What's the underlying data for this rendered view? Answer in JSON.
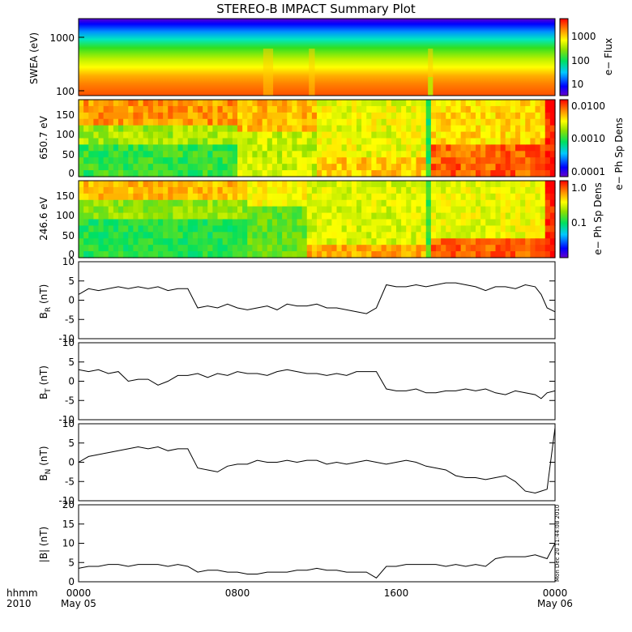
{
  "title": "STEREO-B IMPACT Summary Plot",
  "stamp": "Mon Dec 20 11:44:08 2010",
  "time_axis": {
    "row1_labels": [
      "hhmm",
      "0000",
      "0800",
      "1600",
      "0000"
    ],
    "row2_labels": [
      "2010",
      "May 05",
      "",
      "",
      "May 06"
    ]
  },
  "panels": {
    "swea": {
      "ylabel": "SWEA (eV)",
      "yticks": [
        "1000",
        "100"
      ],
      "cbar_label": "e− Flux",
      "cbar_ticks": [
        "1000",
        "100",
        "10"
      ]
    },
    "pad650": {
      "ylabel": "650.7 eV",
      "yticks": [
        "150",
        "100",
        "50",
        "0"
      ],
      "cbar_label": "e− Ph Sp Dens",
      "cbar_ticks": [
        "0.0100",
        "0.0010",
        "0.0001"
      ]
    },
    "pad246": {
      "ylabel": "246.6 eV",
      "yticks": [
        "150",
        "100",
        "50",
        "0"
      ],
      "cbar_label": "e− Ph Sp Dens",
      "cbar_ticks": [
        "1.0",
        "0.1"
      ]
    },
    "br": {
      "ylabel_main": "B",
      "ylabel_sub": "R",
      "ylabel_unit": " (nT)",
      "yticks": [
        "10",
        "5",
        "0",
        "-5",
        "-10"
      ]
    },
    "bt": {
      "ylabel_main": "B",
      "ylabel_sub": "T",
      "ylabel_unit": " (nT)",
      "yticks": [
        "10",
        "5",
        "0",
        "-5",
        "-10"
      ]
    },
    "bn": {
      "ylabel_main": "B",
      "ylabel_sub": "N",
      "ylabel_unit": " (nT)",
      "yticks": [
        "10",
        "5",
        "0",
        "-5",
        "-10"
      ]
    },
    "bmag": {
      "ylabel": "|B| (nT)",
      "yticks": [
        "20",
        "15",
        "10",
        "5",
        "0"
      ]
    }
  },
  "chart_data": [
    {
      "type": "heatmap",
      "title": "STEREO-B IMPACT Summary Plot",
      "ylabel": "SWEA (eV)",
      "yscale": "log",
      "ylim": [
        90,
        2000
      ],
      "colorbar_label": "e− Flux",
      "colorbar_scale": "log",
      "colorbar_range": [
        5,
        3000
      ],
      "x_range_hours": [
        0,
        24
      ]
    },
    {
      "type": "heatmap",
      "ylabel": "650.7 eV",
      "ylim": [
        0,
        180
      ],
      "colorbar_label": "e− Ph Sp Dens",
      "colorbar_scale": "log",
      "colorbar_range": [
        0.0001,
        0.015
      ]
    },
    {
      "type": "heatmap",
      "ylabel": "246.6 eV",
      "ylim": [
        0,
        180
      ],
      "colorbar_label": "e− Ph Sp Dens",
      "colorbar_scale": "log",
      "colorbar_range": [
        0.02,
        1.2
      ]
    },
    {
      "type": "line",
      "ylabel": "B_R (nT)",
      "ylim": [
        -10,
        10
      ],
      "x": [
        0,
        0.5,
        1,
        1.5,
        2,
        2.5,
        3,
        3.5,
        4,
        4.5,
        5,
        5.5,
        6,
        6.5,
        7,
        7.5,
        8,
        8.5,
        9,
        9.5,
        10,
        10.5,
        11,
        11.5,
        12,
        12.5,
        13,
        13.5,
        14,
        14.5,
        15,
        15.5,
        16,
        16.5,
        17,
        17.5,
        18,
        18.5,
        19,
        19.5,
        20,
        20.5,
        21,
        21.5,
        22,
        22.5,
        23,
        23.3,
        23.6,
        24
      ],
      "y": [
        1.5,
        3,
        2.5,
        3,
        3.5,
        3,
        3.5,
        3,
        3.5,
        2.5,
        3,
        3,
        -2,
        -1.5,
        -2,
        -1,
        -2,
        -2.5,
        -2,
        -1.5,
        -2.5,
        -1,
        -1.5,
        -1.5,
        -1,
        -2,
        -2,
        -2.5,
        -3,
        -3.5,
        -2,
        4,
        3.5,
        3.5,
        4,
        3.5,
        4,
        4.5,
        4.5,
        4,
        3.5,
        2.5,
        3.5,
        3.5,
        3,
        4,
        3.5,
        1.5,
        -2,
        -3
      ]
    },
    {
      "type": "line",
      "ylabel": "B_T (nT)",
      "ylim": [
        -10,
        10
      ],
      "x": [
        0,
        0.5,
        1,
        1.5,
        2,
        2.5,
        3,
        3.5,
        4,
        4.5,
        5,
        5.5,
        6,
        6.5,
        7,
        7.5,
        8,
        8.5,
        9,
        9.5,
        10,
        10.5,
        11,
        11.5,
        12,
        12.5,
        13,
        13.5,
        14,
        14.5,
        15,
        15.5,
        16,
        16.5,
        17,
        17.5,
        18,
        18.5,
        19,
        19.5,
        20,
        20.5,
        21,
        21.5,
        22,
        22.5,
        23,
        23.3,
        23.6,
        24
      ],
      "y": [
        3,
        2.5,
        3,
        2,
        2.5,
        0,
        0.5,
        0.5,
        -1,
        0,
        1.5,
        1.5,
        2,
        1,
        2,
        1.5,
        2.5,
        2,
        2,
        1.5,
        2.5,
        3,
        2.5,
        2,
        2,
        1.5,
        2,
        1.5,
        2.5,
        2.5,
        2.5,
        -2,
        -2.5,
        -2.5,
        -2,
        -3,
        -3,
        -2.5,
        -2.5,
        -2,
        -2.5,
        -2,
        -3,
        -3.5,
        -2.5,
        -3,
        -3.5,
        -4.5,
        -3,
        -2.5
      ]
    },
    {
      "type": "line",
      "ylabel": "B_N (nT)",
      "ylim": [
        -10,
        10
      ],
      "x": [
        0,
        0.5,
        1,
        1.5,
        2,
        2.5,
        3,
        3.5,
        4,
        4.5,
        5,
        5.5,
        6,
        6.5,
        7,
        7.5,
        8,
        8.5,
        9,
        9.5,
        10,
        10.5,
        11,
        11.5,
        12,
        12.5,
        13,
        13.5,
        14,
        14.5,
        15,
        15.5,
        16,
        16.5,
        17,
        17.5,
        18,
        18.5,
        19,
        19.5,
        20,
        20.5,
        21,
        21.5,
        22,
        22.5,
        23,
        23.3,
        23.6,
        24
      ],
      "y": [
        0,
        1.5,
        2,
        2.5,
        3,
        3.5,
        4,
        3.5,
        4,
        3,
        3.5,
        3.5,
        -1.5,
        -2,
        -2.5,
        -1,
        -0.5,
        -0.5,
        0.5,
        0,
        0,
        0.5,
        0,
        0.5,
        0.5,
        -0.5,
        0,
        -0.5,
        0,
        0.5,
        0,
        -0.5,
        0,
        0.5,
        0,
        -1,
        -1.5,
        -2,
        -3.5,
        -4,
        -4,
        -4.5,
        -4,
        -3.5,
        -5,
        -7.5,
        -8,
        -7.5,
        -7,
        9
      ]
    },
    {
      "type": "line",
      "ylabel": "|B| (nT)",
      "ylim": [
        0,
        20
      ],
      "x": [
        0,
        0.5,
        1,
        1.5,
        2,
        2.5,
        3,
        3.5,
        4,
        4.5,
        5,
        5.5,
        6,
        6.5,
        7,
        7.5,
        8,
        8.5,
        9,
        9.5,
        10,
        10.5,
        11,
        11.5,
        12,
        12.5,
        13,
        13.5,
        14,
        14.5,
        15,
        15.5,
        16,
        16.5,
        17,
        17.5,
        18,
        18.5,
        19,
        19.5,
        20,
        20.5,
        21,
        21.5,
        22,
        22.5,
        23,
        23.3,
        23.6,
        24
      ],
      "y": [
        3.5,
        4,
        4,
        4.5,
        4.5,
        4,
        4.5,
        4.5,
        4.5,
        4,
        4.5,
        4,
        2.5,
        3,
        3,
        2.5,
        2.5,
        2,
        2,
        2.5,
        2.5,
        2.5,
        3,
        3,
        3.5,
        3,
        3,
        2.5,
        2.5,
        2.5,
        1,
        4,
        4,
        4.5,
        4.5,
        4.5,
        4.5,
        4,
        4.5,
        4,
        4.5,
        4,
        6,
        6.5,
        6.5,
        6.5,
        7,
        6.5,
        6,
        10
      ]
    }
  ]
}
